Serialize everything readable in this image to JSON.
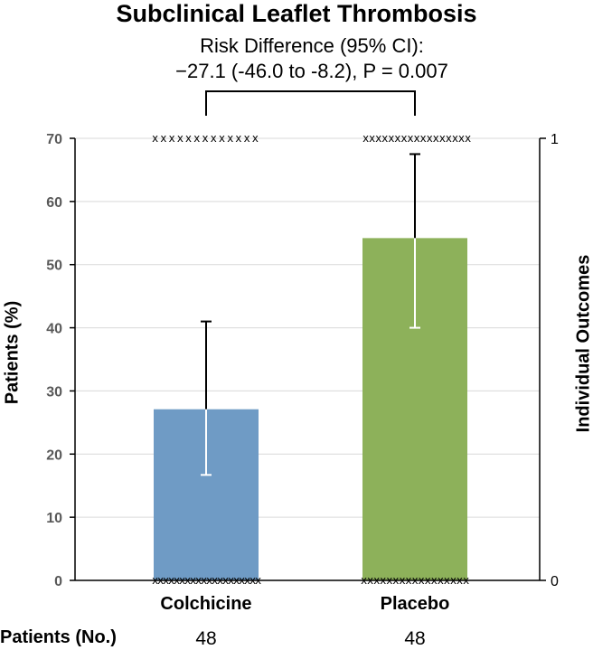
{
  "chart_data": {
    "type": "bar",
    "title": "Subclinical Leaflet Thrombosis",
    "annotation": {
      "line1": "Risk Difference (95% CI):",
      "line2": "−27.1 (-46.0 to -8.2), P = 0.007"
    },
    "categories": [
      "Colchicine",
      "Placebo"
    ],
    "values": [
      27.1,
      54.2
    ],
    "ci_lower": [
      16.7,
      40.0
    ],
    "ci_upper": [
      41.0,
      67.5
    ],
    "bar_colors": [
      "#6f9bc5",
      "#8db15a"
    ],
    "ylabel": "Patients (%)",
    "ylim": [
      0,
      70
    ],
    "yticks": [
      0,
      10,
      20,
      30,
      40,
      50,
      60,
      70
    ],
    "y2label": "Individual Outcomes",
    "y2ticks": [
      0,
      1
    ],
    "grid": true,
    "individual_markers": "x",
    "patients_row_label": "Patients (No.)",
    "patients_counts": [
      "48",
      "48"
    ]
  }
}
